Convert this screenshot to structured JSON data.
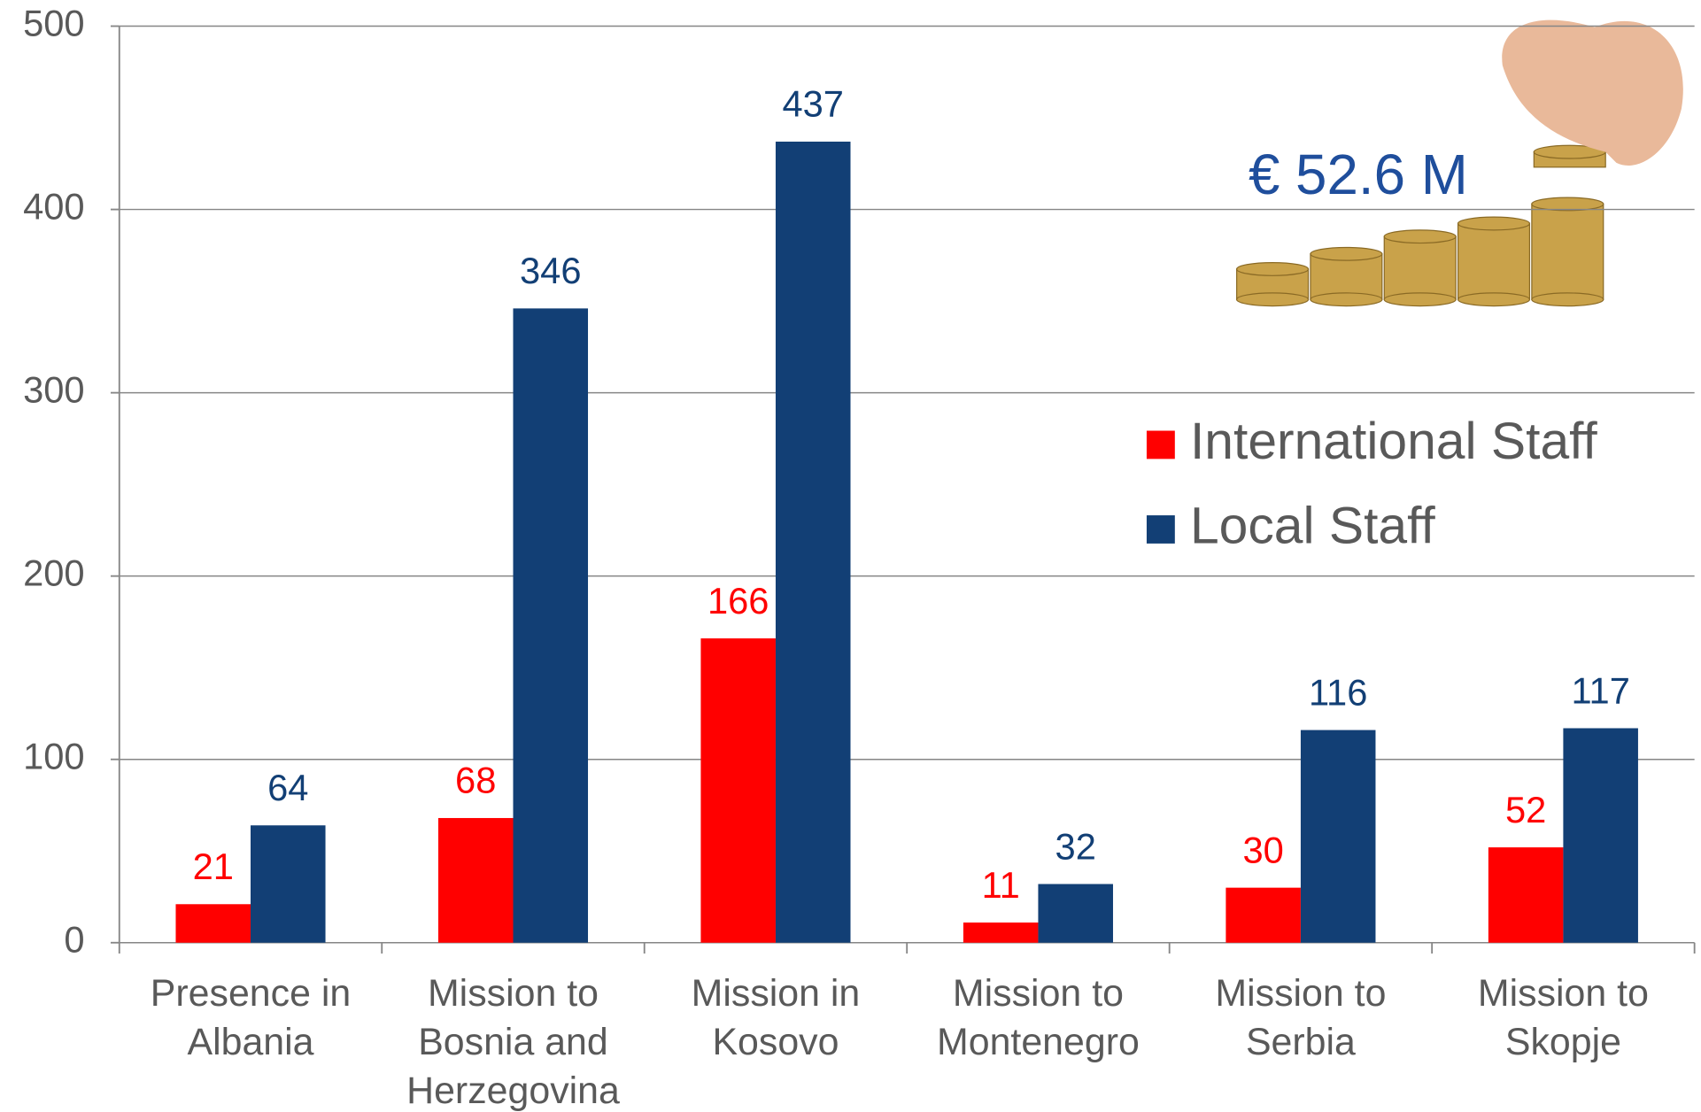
{
  "chart_data": {
    "type": "bar",
    "annotation": "€ 52.6 M",
    "categories": [
      "Presence in Albania",
      "Mission to Bosnia and Herzegovina",
      "Mission in Kosovo",
      "Mission to Montenegro",
      "Mission to Serbia",
      "Mission to Skopje"
    ],
    "series": [
      {
        "name": "International Staff",
        "color": "#ff0000",
        "values": [
          21,
          68,
          166,
          11,
          30,
          52
        ]
      },
      {
        "name": "Local Staff",
        "color": "#123f75",
        "values": [
          64,
          346,
          437,
          32,
          116,
          117
        ]
      }
    ],
    "ylim": [
      0,
      500
    ],
    "yticks": [
      0,
      100,
      200,
      300,
      400,
      500
    ],
    "grid": true,
    "legend": "right"
  }
}
